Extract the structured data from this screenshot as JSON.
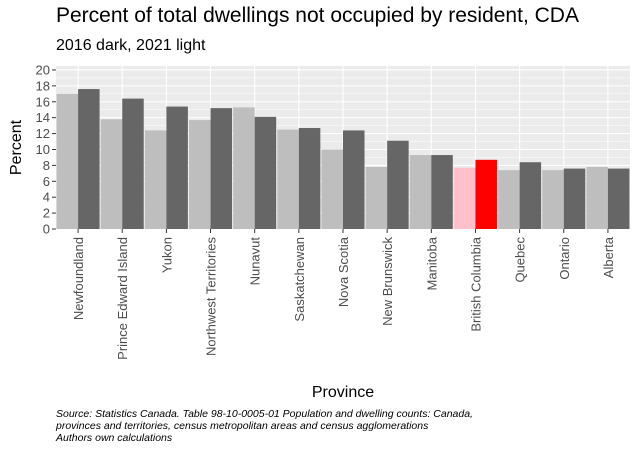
{
  "chart_data": {
    "type": "bar",
    "title": "Percent of total dwellings not occupied by resident, CDA",
    "subtitle": "2016 dark, 2021 light",
    "xlabel": "Province",
    "ylabel": "Percent",
    "ylim": [
      0,
      20.5
    ],
    "yticks": [
      0,
      2,
      4,
      6,
      8,
      10,
      12,
      14,
      16,
      18,
      20
    ],
    "grid": true,
    "categories": [
      "Newfoundland",
      "Prince Edward Island",
      "Yukon",
      "Northwest Territories",
      "Nunavut",
      "Saskatchewan",
      "Nova Scotia",
      "New Brunswick",
      "Manitoba",
      "British Columbia",
      "Quebec",
      "Ontario",
      "Alberta"
    ],
    "series": [
      {
        "name": "2021",
        "shade": "light",
        "values": [
          17.0,
          13.8,
          12.4,
          13.7,
          15.3,
          12.5,
          10.0,
          7.8,
          9.3,
          7.7,
          7.4,
          7.4,
          7.8
        ]
      },
      {
        "name": "2016",
        "shade": "dark",
        "values": [
          17.6,
          16.4,
          15.4,
          15.2,
          14.1,
          12.7,
          12.4,
          11.1,
          9.3,
          8.7,
          8.4,
          7.6,
          7.6
        ]
      }
    ],
    "highlight": {
      "category": "British Columbia",
      "light_color": "#ffc0cb",
      "dark_color": "#ff0000"
    }
  },
  "colors": {
    "light": "#bebebe",
    "dark": "#666666",
    "panel": "#ebebeb",
    "grid": "#ffffff"
  },
  "caption": [
    "Source: Statistics Canada. Table 98-10-0005-01 Population and dwelling counts: Canada,",
    "provinces and territories, census metropolitan areas and census agglomerations",
    "Authors own calculations"
  ]
}
